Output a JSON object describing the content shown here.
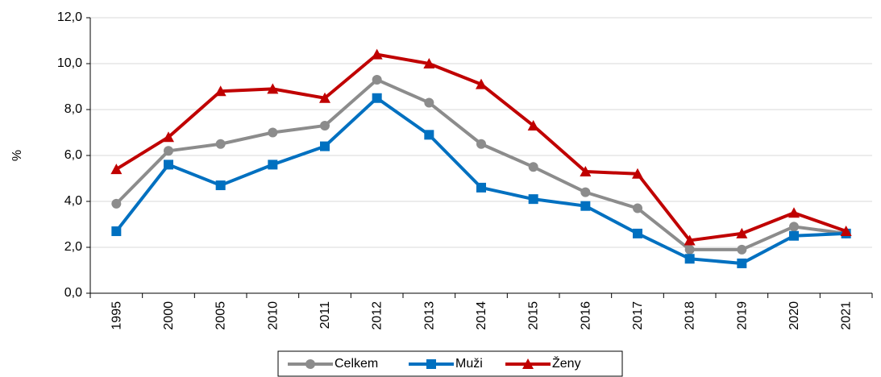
{
  "chart_data": {
    "type": "line",
    "ylabel": "%",
    "categories": [
      "1995",
      "2000",
      "2005",
      "2010",
      "2011",
      "2012",
      "2013",
      "2014",
      "2015",
      "2016",
      "2017",
      "2018",
      "2019",
      "2020",
      "2021"
    ],
    "series": [
      {
        "name": "Celkem",
        "color": "#8c8c8c",
        "marker": "circle",
        "values": [
          3.9,
          6.2,
          6.5,
          7.0,
          7.3,
          9.3,
          8.3,
          6.5,
          5.5,
          4.4,
          3.7,
          1.9,
          1.9,
          2.9,
          2.6
        ]
      },
      {
        "name": "Muži",
        "color": "#0070c0",
        "marker": "square",
        "values": [
          2.7,
          5.6,
          4.7,
          5.6,
          6.4,
          8.5,
          6.9,
          4.6,
          4.1,
          3.8,
          2.6,
          1.5,
          1.3,
          2.5,
          2.6
        ]
      },
      {
        "name": "Ženy",
        "color": "#c00000",
        "marker": "triangle",
        "values": [
          5.4,
          6.8,
          8.8,
          8.9,
          8.5,
          10.4,
          10.0,
          9.1,
          7.3,
          5.3,
          5.2,
          2.3,
          2.6,
          3.5,
          2.7
        ]
      }
    ],
    "ylim": [
      0,
      12
    ],
    "yticks": [
      {
        "value": 0,
        "label": "0,0"
      },
      {
        "value": 2,
        "label": "2,0"
      },
      {
        "value": 4,
        "label": "4,0"
      },
      {
        "value": 6,
        "label": "6,0"
      },
      {
        "value": 8,
        "label": "8,0"
      },
      {
        "value": 10,
        "label": "10,0"
      },
      {
        "value": 12,
        "label": "12,0"
      }
    ],
    "grid": true,
    "legend": "bottom"
  }
}
